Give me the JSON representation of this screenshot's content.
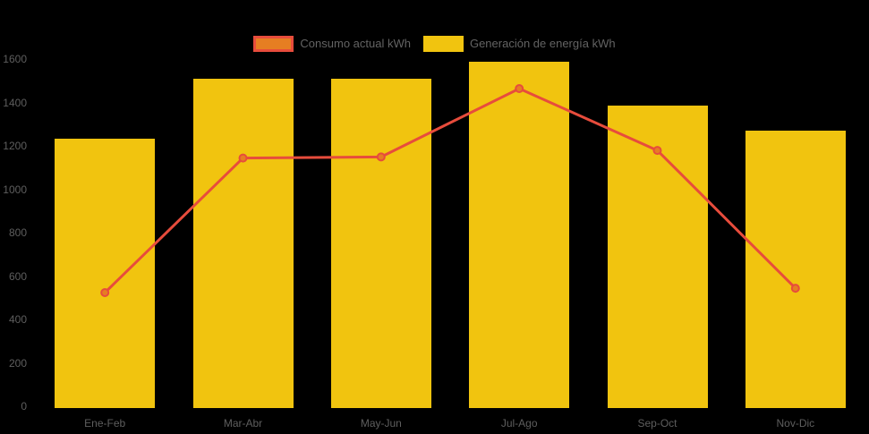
{
  "background_color": "#000000",
  "legend": {
    "items": [
      {
        "label": "Consumo actual kWh",
        "swatch_fill": "#E67E22",
        "swatch_border": "#E74C3C"
      },
      {
        "label": "Generación de energía kWh",
        "swatch_fill": "#F1C40F",
        "swatch_border": "#F1C40F"
      }
    ]
  },
  "chart_data": {
    "type": "bar",
    "subtype": "bar-with-line-overlay",
    "title": "",
    "xlabel": "",
    "ylabel": "",
    "categories": [
      "Ene-Feb",
      "Mar-Abr",
      "May-Jun",
      "Jul-Ago",
      "Sep-Oct",
      "Nov-Dic"
    ],
    "series": [
      {
        "name": "Consumo actual kWh",
        "type": "line",
        "line_color": "#E74C3C",
        "point_fill": "#E67E22",
        "point_border": "#E74C3C",
        "values": [
          525,
          1145,
          1150,
          1465,
          1180,
          545
        ]
      },
      {
        "name": "Generación de energía kWh",
        "type": "bar",
        "bar_color": "#F1C40F",
        "values": [
          1235,
          1510,
          1510,
          1590,
          1385,
          1270
        ]
      }
    ],
    "ylim": [
      0,
      1600
    ],
    "yticks": [
      0,
      200,
      400,
      600,
      800,
      1000,
      1200,
      1400,
      1600
    ],
    "grid": false,
    "legend_position": "top",
    "axis_text_color": "#5e5e5e"
  }
}
